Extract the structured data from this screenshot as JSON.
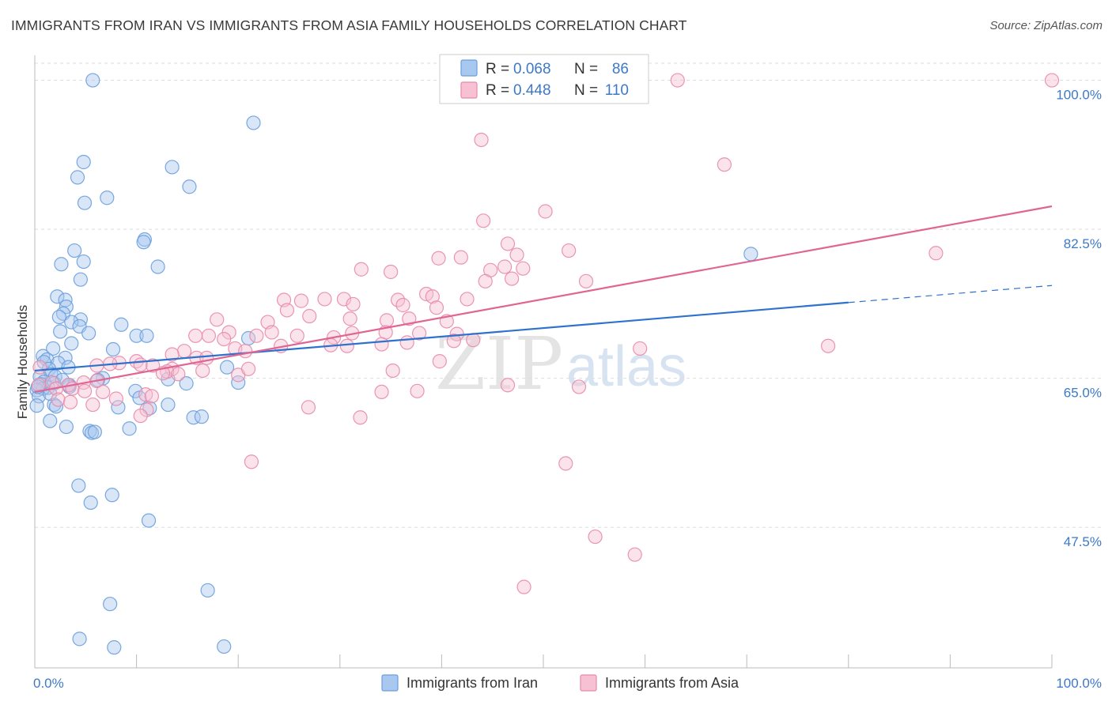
{
  "title": "IMMIGRANTS FROM IRAN VS IMMIGRANTS FROM ASIA FAMILY HOUSEHOLDS CORRELATION CHART",
  "source": "Source: ZipAtlas.com",
  "watermark": {
    "zip": "ZIP",
    "atlas": "atlas"
  },
  "colors": {
    "iran_fill": "#a9c8f0",
    "iran_stroke": "#6a9fdc",
    "iran_line": "#2f72cc",
    "asia_fill": "#f7c0d3",
    "asia_stroke": "#e88aab",
    "asia_line": "#e06592",
    "tick_blue": "#3d79c8",
    "grid": "#dddddd"
  },
  "legend": {
    "rows": [
      {
        "r_label": "R =",
        "r_value": "0.068",
        "n_label": "N =",
        "n_value": "86"
      },
      {
        "r_label": "R =",
        "r_value": "0.448",
        "n_label": "N =",
        "n_value": "110"
      }
    ]
  },
  "chart_data": {
    "type": "scatter",
    "title": "IMMIGRANTS FROM IRAN VS IMMIGRANTS FROM ASIA FAMILY HOUSEHOLDS CORRELATION CHART",
    "xlabel": "",
    "ylabel": "Family Households",
    "xlim": [
      0,
      100
    ],
    "ylim": [
      31,
      102
    ],
    "x_tick_labels": [
      "0.0%",
      "100.0%"
    ],
    "y_ticks": [
      {
        "value": 47.5,
        "label": "47.5%"
      },
      {
        "value": 65.0,
        "label": "65.0%"
      },
      {
        "value": 82.5,
        "label": "82.5%"
      },
      {
        "value": 100.0,
        "label": "100.0%"
      }
    ],
    "grid": true,
    "legend_position": "top-center",
    "series": [
      {
        "name": "Immigrants from Iran",
        "R": 0.068,
        "N": 86,
        "trend": {
          "x0": 0,
          "y0": 65.9,
          "x1": 80,
          "y1": 73.9,
          "dashed_to_x": 100,
          "dashed_to_y": 75.9
        },
        "points": [
          [
            5.7,
            100.0
          ],
          [
            21.5,
            95.0
          ],
          [
            4.8,
            90.4
          ],
          [
            13.5,
            89.8
          ],
          [
            4.2,
            88.6
          ],
          [
            15.2,
            87.5
          ],
          [
            7.1,
            86.2
          ],
          [
            4.9,
            85.6
          ],
          [
            10.8,
            81.3
          ],
          [
            10.7,
            81.0
          ],
          [
            3.9,
            80.0
          ],
          [
            2.6,
            78.4
          ],
          [
            4.8,
            78.7
          ],
          [
            12.1,
            78.1
          ],
          [
            4.5,
            76.6
          ],
          [
            2.2,
            74.6
          ],
          [
            3.0,
            74.2
          ],
          [
            3.1,
            73.4
          ],
          [
            2.8,
            72.6
          ],
          [
            2.4,
            72.2
          ],
          [
            4.5,
            71.9
          ],
          [
            3.6,
            71.6
          ],
          [
            4.4,
            71.1
          ],
          [
            8.5,
            71.3
          ],
          [
            2.5,
            70.5
          ],
          [
            5.3,
            70.3
          ],
          [
            10.0,
            70.0
          ],
          [
            11.0,
            70.0
          ],
          [
            21.0,
            69.7
          ],
          [
            3.6,
            69.1
          ],
          [
            7.7,
            68.4
          ],
          [
            1.8,
            68.5
          ],
          [
            0.8,
            67.6
          ],
          [
            1.2,
            67.2
          ],
          [
            3.0,
            67.4
          ],
          [
            0.9,
            66.9
          ],
          [
            2.3,
            66.8
          ],
          [
            3.3,
            66.3
          ],
          [
            1.4,
            66.1
          ],
          [
            18.9,
            66.3
          ],
          [
            1.6,
            65.5
          ],
          [
            2.0,
            65.2
          ],
          [
            0.5,
            65.2
          ],
          [
            6.7,
            65.0
          ],
          [
            0.9,
            64.6
          ],
          [
            13.1,
            64.9
          ],
          [
            1.9,
            64.4
          ],
          [
            20.0,
            64.5
          ],
          [
            3.4,
            64.2
          ],
          [
            14.9,
            64.4
          ],
          [
            0.6,
            64.3
          ],
          [
            1.3,
            63.9
          ],
          [
            0.8,
            63.8
          ],
          [
            0.2,
            63.6
          ],
          [
            9.9,
            63.5
          ],
          [
            3.4,
            64.0
          ],
          [
            10.3,
            62.7
          ],
          [
            0.4,
            62.9
          ],
          [
            1.9,
            61.9
          ],
          [
            2.1,
            61.7
          ],
          [
            11.3,
            61.5
          ],
          [
            8.2,
            61.6
          ],
          [
            13.1,
            61.9
          ],
          [
            0.2,
            61.8
          ],
          [
            15.6,
            60.4
          ],
          [
            16.4,
            60.5
          ],
          [
            1.5,
            60.0
          ],
          [
            3.1,
            59.3
          ],
          [
            9.3,
            59.1
          ],
          [
            5.4,
            58.8
          ],
          [
            5.6,
            58.6
          ],
          [
            5.9,
            58.7
          ],
          [
            70.4,
            79.6
          ],
          [
            4.3,
            52.4
          ],
          [
            7.6,
            51.3
          ],
          [
            5.5,
            50.4
          ],
          [
            11.2,
            48.3
          ],
          [
            17.0,
            40.1
          ],
          [
            7.4,
            38.5
          ],
          [
            4.4,
            34.4
          ],
          [
            7.8,
            33.4
          ],
          [
            18.6,
            33.5
          ],
          [
            1.5,
            63.2
          ],
          [
            2.7,
            64.8
          ],
          [
            6.2,
            64.8
          ],
          [
            0.3,
            64.0
          ]
        ]
      },
      {
        "name": "Immigrants from Asia",
        "R": 0.448,
        "N": 110,
        "trend": {
          "x0": 0,
          "y0": 63.4,
          "x1": 100,
          "y1": 85.2
        },
        "points": [
          [
            63.2,
            100.0
          ],
          [
            100.0,
            100.0
          ],
          [
            43.9,
            93.0
          ],
          [
            67.8,
            90.1
          ],
          [
            50.2,
            84.6
          ],
          [
            44.1,
            83.5
          ],
          [
            46.5,
            80.8
          ],
          [
            52.5,
            80.0
          ],
          [
            41.9,
            79.2
          ],
          [
            39.7,
            79.1
          ],
          [
            47.4,
            79.5
          ],
          [
            46.2,
            78.1
          ],
          [
            48.0,
            77.9
          ],
          [
            44.8,
            77.7
          ],
          [
            32.1,
            77.8
          ],
          [
            35.0,
            77.5
          ],
          [
            44.3,
            76.4
          ],
          [
            46.9,
            76.7
          ],
          [
            54.2,
            76.4
          ],
          [
            88.6,
            79.7
          ],
          [
            38.5,
            74.9
          ],
          [
            39.1,
            74.6
          ],
          [
            42.5,
            74.3
          ],
          [
            30.4,
            74.3
          ],
          [
            28.5,
            74.3
          ],
          [
            35.7,
            74.2
          ],
          [
            26.2,
            74.1
          ],
          [
            24.5,
            74.2
          ],
          [
            31.3,
            73.7
          ],
          [
            36.2,
            73.6
          ],
          [
            39.5,
            73.3
          ],
          [
            24.8,
            73.0
          ],
          [
            27.0,
            72.3
          ],
          [
            31.0,
            72.0
          ],
          [
            36.8,
            72.0
          ],
          [
            34.6,
            71.8
          ],
          [
            40.5,
            71.7
          ],
          [
            22.9,
            71.6
          ],
          [
            17.9,
            71.9
          ],
          [
            23.3,
            70.4
          ],
          [
            31.2,
            70.3
          ],
          [
            41.5,
            70.2
          ],
          [
            34.5,
            70.4
          ],
          [
            37.8,
            70.3
          ],
          [
            17.1,
            70.0
          ],
          [
            15.8,
            70.0
          ],
          [
            21.8,
            70.0
          ],
          [
            25.8,
            70.0
          ],
          [
            19.1,
            70.4
          ],
          [
            18.6,
            69.6
          ],
          [
            29.4,
            69.8
          ],
          [
            34.1,
            69.0
          ],
          [
            36.6,
            69.2
          ],
          [
            41.2,
            69.4
          ],
          [
            43.1,
            69.5
          ],
          [
            29.1,
            68.9
          ],
          [
            30.7,
            68.8
          ],
          [
            24.2,
            68.8
          ],
          [
            19.7,
            68.5
          ],
          [
            20.7,
            68.2
          ],
          [
            14.7,
            68.2
          ],
          [
            13.5,
            67.8
          ],
          [
            15.9,
            67.4
          ],
          [
            16.9,
            67.4
          ],
          [
            10.0,
            67.0
          ],
          [
            8.3,
            66.8
          ],
          [
            7.4,
            66.7
          ],
          [
            10.4,
            66.6
          ],
          [
            6.1,
            66.5
          ],
          [
            11.6,
            66.5
          ],
          [
            13.5,
            66.1
          ],
          [
            13.0,
            65.8
          ],
          [
            12.6,
            65.6
          ],
          [
            14.1,
            65.5
          ],
          [
            16.5,
            65.9
          ],
          [
            20.0,
            65.4
          ],
          [
            21.0,
            66.1
          ],
          [
            35.2,
            65.9
          ],
          [
            39.8,
            67.0
          ],
          [
            59.5,
            68.5
          ],
          [
            78.0,
            68.8
          ],
          [
            6.1,
            64.7
          ],
          [
            4.8,
            64.5
          ],
          [
            3.3,
            64.2
          ],
          [
            1.7,
            64.5
          ],
          [
            0.4,
            64.2
          ],
          [
            2.1,
            63.8
          ],
          [
            3.7,
            63.8
          ],
          [
            4.9,
            63.5
          ],
          [
            6.7,
            63.4
          ],
          [
            10.9,
            63.1
          ],
          [
            11.5,
            62.9
          ],
          [
            8.0,
            62.6
          ],
          [
            2.3,
            62.5
          ],
          [
            3.5,
            62.2
          ],
          [
            5.7,
            61.9
          ],
          [
            26.9,
            61.6
          ],
          [
            11.0,
            61.3
          ],
          [
            10.4,
            60.6
          ],
          [
            32.0,
            60.4
          ],
          [
            46.5,
            64.2
          ],
          [
            53.5,
            64.0
          ],
          [
            34.1,
            63.4
          ],
          [
            37.6,
            63.5
          ],
          [
            21.3,
            55.2
          ],
          [
            52.2,
            55.0
          ],
          [
            55.1,
            46.4
          ],
          [
            59.0,
            44.3
          ],
          [
            48.1,
            40.5
          ],
          [
            0.5,
            66.3
          ]
        ]
      }
    ]
  },
  "bottom_legend": [
    {
      "label": "Immigrants from Iran"
    },
    {
      "label": "Immigrants from Asia"
    }
  ]
}
